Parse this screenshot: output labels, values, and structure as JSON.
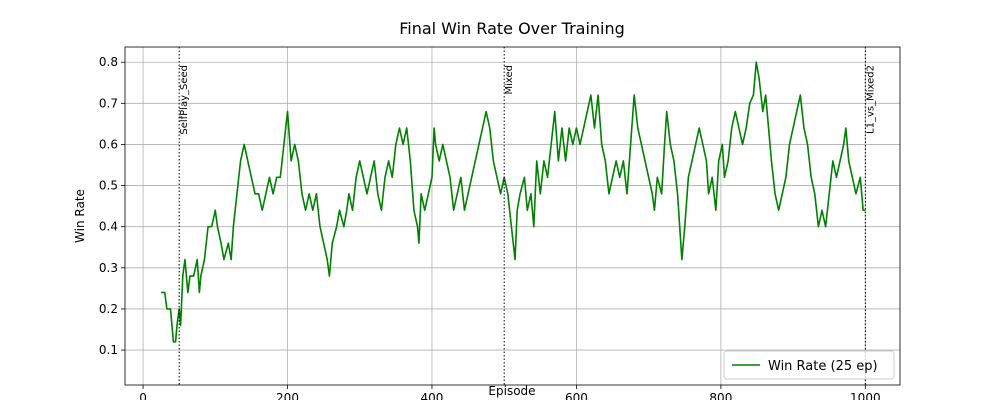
{
  "chart_data": {
    "type": "line",
    "title": "Final Win Rate Over Training",
    "xlabel": "Episode",
    "ylabel": "Win Rate",
    "grid": true,
    "legend": "lower right",
    "xlim": [
      -25,
      1048
    ],
    "ylim": [
      0.015,
      0.837
    ],
    "xticks": [
      0,
      200,
      400,
      600,
      800,
      1000
    ],
    "yticks": [
      0.1,
      0.2,
      0.3,
      0.4,
      0.5,
      0.6,
      0.7,
      0.8
    ],
    "annotations": [
      {
        "x": 50,
        "label": "SelfPlay_Seed"
      },
      {
        "x": 500,
        "label": "Mixed"
      },
      {
        "x": 1000,
        "label": "L1_vs_Mixed2"
      }
    ],
    "x": [
      25,
      30,
      33,
      38,
      40,
      42,
      45,
      47,
      50,
      52,
      55,
      58,
      60,
      62,
      65,
      70,
      75,
      78,
      80,
      85,
      90,
      95,
      100,
      103,
      108,
      112,
      118,
      122,
      125,
      130,
      135,
      140,
      145,
      150,
      155,
      160,
      165,
      170,
      175,
      180,
      185,
      190,
      195,
      200,
      205,
      210,
      215,
      220,
      225,
      230,
      235,
      240,
      245,
      250,
      255,
      258,
      262,
      268,
      272,
      278,
      282,
      285,
      290,
      295,
      300,
      305,
      310,
      315,
      320,
      325,
      330,
      335,
      340,
      345,
      350,
      355,
      360,
      365,
      370,
      375,
      380,
      382,
      385,
      390,
      395,
      400,
      403,
      405,
      410,
      415,
      420,
      425,
      430,
      435,
      440,
      445,
      450,
      455,
      460,
      465,
      470,
      475,
      480,
      485,
      490,
      495,
      500,
      505,
      510,
      515,
      518,
      522,
      528,
      532,
      537,
      541,
      545,
      550,
      555,
      560,
      565,
      570,
      575,
      580,
      585,
      590,
      595,
      600,
      605,
      610,
      615,
      620,
      625,
      630,
      635,
      640,
      645,
      650,
      655,
      660,
      665,
      670,
      675,
      680,
      685,
      690,
      695,
      700,
      705,
      708,
      712,
      718,
      722,
      725,
      730,
      735,
      740,
      743,
      746,
      750,
      755,
      760,
      765,
      770,
      775,
      780,
      783,
      788,
      793,
      797,
      802,
      805,
      810,
      815,
      820,
      825,
      830,
      835,
      840,
      845,
      849,
      853,
      858,
      862,
      866,
      870,
      875,
      880,
      885,
      890,
      895,
      900,
      905,
      910,
      915,
      920,
      925,
      930,
      935,
      940,
      945,
      950,
      955,
      960,
      965,
      970,
      973,
      977,
      982,
      987,
      993,
      997,
      1000
    ],
    "series": [
      {
        "name": "Win Rate (25 ep)",
        "color": "#008000",
        "values": [
          0.24,
          0.24,
          0.2,
          0.2,
          0.16,
          0.12,
          0.12,
          0.16,
          0.2,
          0.16,
          0.28,
          0.32,
          0.28,
          0.24,
          0.28,
          0.28,
          0.32,
          0.24,
          0.28,
          0.32,
          0.4,
          0.4,
          0.44,
          0.4,
          0.36,
          0.32,
          0.36,
          0.32,
          0.4,
          0.48,
          0.56,
          0.6,
          0.56,
          0.52,
          0.48,
          0.48,
          0.44,
          0.48,
          0.52,
          0.48,
          0.52,
          0.52,
          0.6,
          0.68,
          0.56,
          0.6,
          0.56,
          0.48,
          0.44,
          0.48,
          0.44,
          0.48,
          0.4,
          0.36,
          0.32,
          0.28,
          0.36,
          0.4,
          0.44,
          0.4,
          0.44,
          0.48,
          0.44,
          0.52,
          0.56,
          0.52,
          0.48,
          0.52,
          0.56,
          0.48,
          0.44,
          0.52,
          0.56,
          0.52,
          0.6,
          0.64,
          0.6,
          0.64,
          0.56,
          0.44,
          0.4,
          0.36,
          0.48,
          0.44,
          0.48,
          0.52,
          0.64,
          0.6,
          0.56,
          0.6,
          0.56,
          0.52,
          0.44,
          0.48,
          0.52,
          0.44,
          0.48,
          0.52,
          0.56,
          0.6,
          0.64,
          0.68,
          0.64,
          0.56,
          0.52,
          0.48,
          0.52,
          0.48,
          0.4,
          0.32,
          0.44,
          0.48,
          0.52,
          0.44,
          0.48,
          0.4,
          0.56,
          0.48,
          0.56,
          0.52,
          0.6,
          0.68,
          0.56,
          0.64,
          0.56,
          0.64,
          0.6,
          0.64,
          0.6,
          0.64,
          0.68,
          0.72,
          0.64,
          0.72,
          0.6,
          0.56,
          0.48,
          0.52,
          0.56,
          0.52,
          0.56,
          0.48,
          0.6,
          0.72,
          0.64,
          0.6,
          0.56,
          0.52,
          0.48,
          0.44,
          0.52,
          0.48,
          0.6,
          0.68,
          0.6,
          0.56,
          0.48,
          0.4,
          0.32,
          0.4,
          0.52,
          0.56,
          0.6,
          0.64,
          0.6,
          0.56,
          0.48,
          0.52,
          0.44,
          0.56,
          0.6,
          0.52,
          0.56,
          0.64,
          0.68,
          0.64,
          0.6,
          0.64,
          0.7,
          0.72,
          0.8,
          0.76,
          0.68,
          0.72,
          0.64,
          0.56,
          0.48,
          0.44,
          0.48,
          0.52,
          0.6,
          0.64,
          0.68,
          0.72,
          0.64,
          0.6,
          0.52,
          0.48,
          0.4,
          0.44,
          0.4,
          0.48,
          0.56,
          0.52,
          0.56,
          0.6,
          0.64,
          0.56,
          0.52,
          0.48,
          0.52,
          0.44,
          0.44
        ]
      }
    ]
  }
}
